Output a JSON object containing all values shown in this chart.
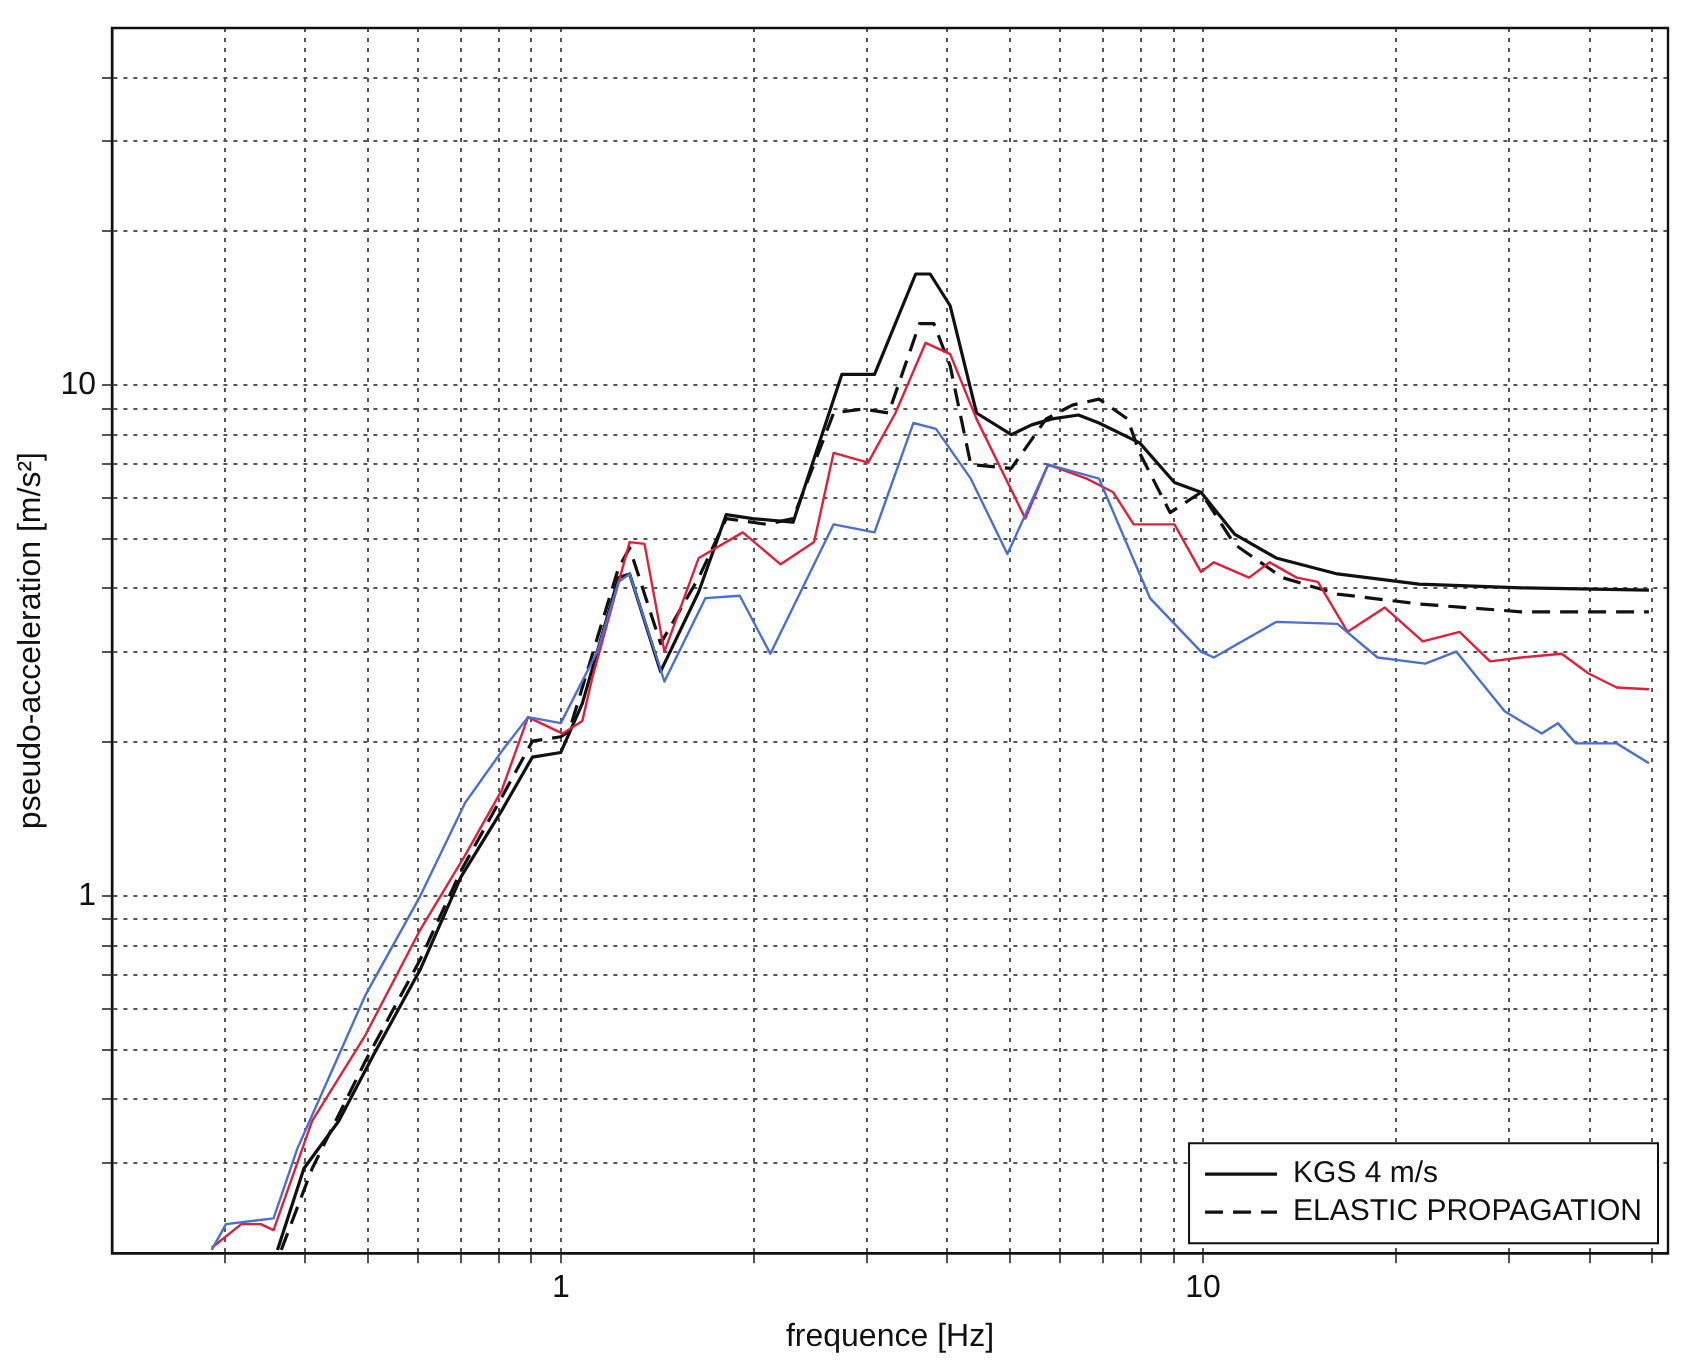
{
  "chart_data": {
    "type": "line",
    "xlabel": "frequence [Hz]",
    "ylabel": "pseudo-acceleration [m/s²]",
    "log": "xy",
    "grid": true,
    "legend": "bottom right",
    "xlim": [
      0.2,
      53
    ],
    "ylim": [
      0.2,
      50
    ],
    "xticks": [
      {
        "value": 0.3,
        "label": null
      },
      {
        "value": 0.4,
        "label": null
      },
      {
        "value": 0.5,
        "label": null
      },
      {
        "value": 0.6,
        "label": null
      },
      {
        "value": 0.7,
        "label": null
      },
      {
        "value": 0.8,
        "label": null
      },
      {
        "value": 0.9,
        "label": null
      },
      1,
      {
        "value": 2,
        "label": null
      },
      {
        "value": 3,
        "label": null
      },
      {
        "value": 4,
        "label": null
      },
      {
        "value": 5,
        "label": null
      },
      {
        "value": 6,
        "label": null
      },
      {
        "value": 7,
        "label": null
      },
      {
        "value": 8,
        "label": null
      },
      {
        "value": 9,
        "label": null
      },
      10,
      {
        "value": 20,
        "label": null
      },
      {
        "value": 30,
        "label": null
      },
      {
        "value": 40,
        "label": null
      },
      {
        "value": 50,
        "label": null
      }
    ],
    "yticks": [
      {
        "value": 0.3,
        "label": null
      },
      {
        "value": 0.4,
        "label": null
      },
      {
        "value": 0.5,
        "label": null
      },
      {
        "value": 0.6,
        "label": null
      },
      {
        "value": 0.7,
        "label": null
      },
      {
        "value": 0.8,
        "label": null
      },
      {
        "value": 0.9,
        "label": null
      },
      1,
      {
        "value": 2,
        "label": null
      },
      {
        "value": 3,
        "label": null
      },
      {
        "value": 4,
        "label": null
      },
      {
        "value": 5,
        "label": null
      },
      {
        "value": 6,
        "label": null
      },
      {
        "value": 7,
        "label": null
      },
      {
        "value": 8,
        "label": null
      },
      {
        "value": 9,
        "label": null
      },
      10,
      {
        "value": 20,
        "label": null
      },
      {
        "value": 30,
        "label": null
      },
      {
        "value": 40,
        "label": null
      }
    ],
    "series": [
      {
        "color": "#4a6fd0",
        "line_style": "solid",
        "x": [
          0.286,
          0.301,
          0.357,
          0.389,
          0.496,
          0.604,
          0.709,
          0.809,
          0.889,
          1.0,
          1.14,
          1.23,
          1.28,
          1.45,
          1.68,
          1.9,
          2.12,
          2.66,
          3.08,
          3.54,
          3.84,
          4.35,
          4.96,
          5.74,
          6.89,
          8.27,
          9.93,
          10.4,
          13.0,
          16.2,
          18.7,
          22.2,
          24.8,
          29.5,
          33.7,
          35.7,
          38.1,
          44.1,
          49.5
        ],
        "values": [
          0.203,
          0.228,
          0.234,
          0.321,
          0.639,
          1.0,
          1.52,
          1.92,
          2.24,
          2.18,
          3.01,
          4.12,
          4.27,
          2.63,
          3.83,
          3.87,
          2.98,
          5.34,
          5.15,
          8.43,
          8.21,
          6.56,
          4.67,
          6.99,
          6.56,
          3.83,
          3.01,
          2.93,
          3.44,
          3.41,
          2.93,
          2.85,
          3.01,
          2.3,
          2.08,
          2.18,
          1.99,
          1.99,
          1.82
        ]
      },
      {
        "color": "#e0203a",
        "line_style": "solid",
        "x": [
          0.286,
          0.318,
          0.341,
          0.357,
          0.41,
          0.496,
          0.604,
          0.709,
          0.809,
          0.889,
          1.007,
          1.08,
          1.12,
          1.28,
          1.35,
          1.45,
          1.64,
          1.92,
          2.2,
          2.48,
          2.66,
          3.01,
          3.32,
          3.7,
          4.04,
          4.44,
          5.29,
          5.74,
          6.59,
          7.25,
          7.8,
          9.03,
          9.93,
          10.4,
          11.8,
          12.7,
          14.0,
          15.1,
          16.8,
          19.2,
          22.0,
          25.1,
          28.0,
          31.3,
          36.2,
          39.8,
          44.1,
          49.5
        ],
        "values": [
          0.205,
          0.228,
          0.228,
          0.222,
          0.363,
          0.534,
          0.859,
          1.2,
          1.61,
          2.24,
          2.08,
          2.2,
          2.68,
          4.93,
          4.89,
          3.01,
          4.59,
          5.15,
          4.46,
          4.93,
          7.37,
          7.05,
          8.82,
          12.1,
          11.5,
          8.59,
          5.48,
          6.99,
          6.56,
          6.17,
          5.34,
          5.34,
          4.31,
          4.5,
          4.2,
          4.5,
          4.2,
          4.12,
          3.29,
          3.67,
          3.15,
          3.29,
          2.88,
          2.93,
          2.98,
          2.73,
          2.56,
          2.54
        ]
      },
      {
        "name": "KGS 4 m/s",
        "color": "#111111",
        "line_style": "solid",
        "x": [
          0.362,
          0.398,
          0.451,
          0.511,
          0.604,
          0.699,
          0.809,
          0.903,
          1.0,
          1.08,
          1.23,
          1.28,
          1.43,
          1.64,
          1.81,
          1.99,
          2.3,
          2.74,
          3.08,
          3.57,
          3.76,
          4.04,
          4.44,
          5.03,
          5.41,
          5.82,
          6.4,
          6.89,
          7.97,
          9.03,
          9.93,
          11.2,
          13.0,
          16.2,
          21.7,
          31.3,
          49.5
        ],
        "values": [
          0.203,
          0.293,
          0.363,
          0.489,
          0.718,
          1.09,
          1.47,
          1.87,
          1.91,
          2.38,
          4.2,
          4.27,
          2.75,
          3.94,
          5.58,
          5.48,
          5.39,
          10.5,
          10.5,
          16.5,
          16.5,
          14.3,
          8.82,
          8.0,
          8.36,
          8.59,
          8.74,
          8.43,
          7.71,
          6.45,
          6.17,
          5.11,
          4.59,
          4.27,
          4.08,
          4.01,
          3.97
        ]
      },
      {
        "name": "ELASTIC PROPAGATION",
        "color": "#111111",
        "line_style": "dashed",
        "x": [
          0.367,
          0.41,
          0.496,
          0.604,
          0.699,
          0.809,
          0.903,
          1.0,
          1.03,
          1.23,
          1.28,
          1.43,
          1.64,
          1.81,
          2.09,
          2.3,
          2.66,
          2.95,
          3.24,
          3.62,
          3.81,
          4.04,
          4.35,
          5.03,
          5.7,
          6.26,
          6.89,
          7.63,
          7.97,
          8.89,
          9.93,
          11.2,
          13.3,
          16.2,
          21.7,
          31.3,
          49.5
        ],
        "values": [
          0.203,
          0.293,
          0.475,
          0.751,
          1.12,
          1.56,
          2.01,
          2.05,
          2.1,
          4.39,
          4.8,
          3.12,
          4.2,
          5.48,
          5.34,
          5.48,
          8.82,
          8.98,
          8.82,
          13.2,
          13.2,
          10.9,
          6.99,
          6.87,
          8.59,
          9.14,
          9.39,
          8.59,
          7.37,
          5.63,
          6.17,
          4.88,
          4.2,
          3.9,
          3.73,
          3.6,
          3.6
        ]
      }
    ]
  }
}
